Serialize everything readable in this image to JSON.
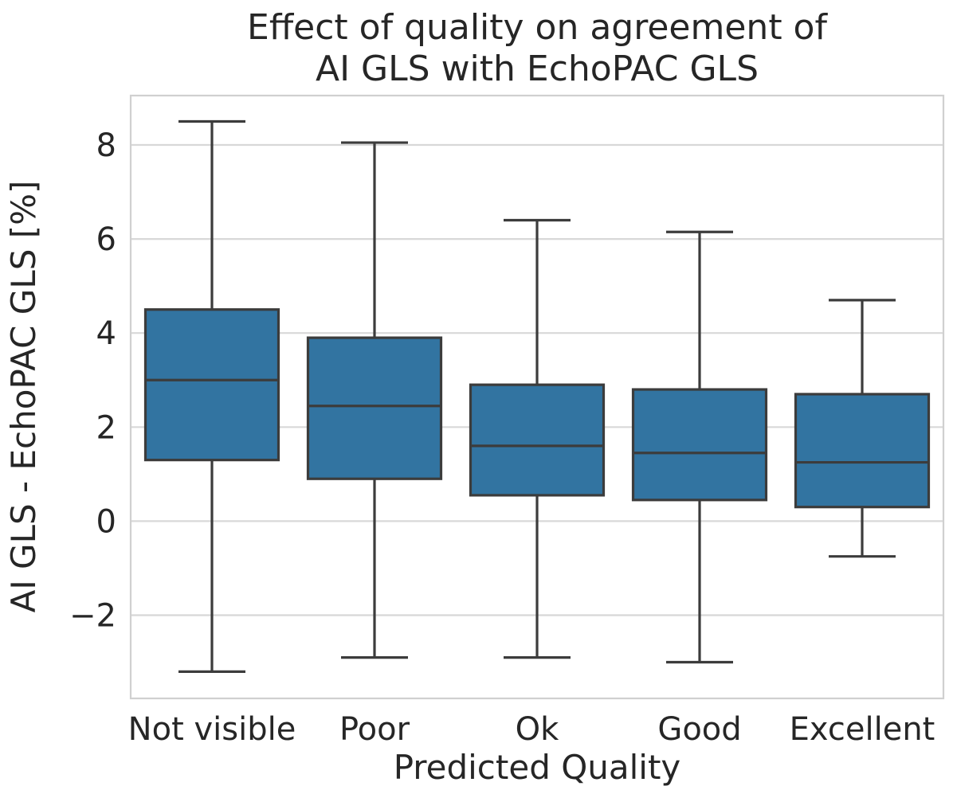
{
  "chart_data": {
    "type": "boxplot",
    "title": "Effect of quality on agreement of\nAI GLS with EchoPAC GLS",
    "title_lines": [
      "Effect of quality on agreement of",
      "AI GLS with EchoPAC GLS"
    ],
    "xlabel": "Predicted Quality",
    "ylabel": "AI GLS - EchoPAC GLS [%]",
    "categories": [
      "Not visible",
      "Poor",
      "Ok",
      "Good",
      "Excellent"
    ],
    "boxes": [
      {
        "category": "Not visible",
        "whisker_low": -3.2,
        "q1": 1.3,
        "median": 3.0,
        "q3": 4.5,
        "whisker_high": 8.5
      },
      {
        "category": "Poor",
        "whisker_low": -2.9,
        "q1": 0.9,
        "median": 2.45,
        "q3": 3.9,
        "whisker_high": 8.05
      },
      {
        "category": "Ok",
        "whisker_low": -2.9,
        "q1": 0.55,
        "median": 1.6,
        "q3": 2.9,
        "whisker_high": 6.4
      },
      {
        "category": "Good",
        "whisker_low": -3.0,
        "q1": 0.45,
        "median": 1.45,
        "q3": 2.8,
        "whisker_high": 6.15
      },
      {
        "category": "Excellent",
        "whisker_low": -0.75,
        "q1": 0.3,
        "median": 1.25,
        "q3": 2.7,
        "whisker_high": 4.7
      }
    ],
    "yticks": [
      8,
      6,
      4,
      2,
      0,
      -2
    ],
    "ytick_labels": [
      "8",
      "6",
      "4",
      "2",
      "0",
      "−2"
    ],
    "ylim": [
      -3.77,
      9.05
    ],
    "grid": true,
    "legend_position": "none",
    "colors": {
      "box_fill": "#3274A1",
      "box_edge": "#3C3C3C",
      "median": "#3C3C3C",
      "whisker": "#3C3C3C",
      "grid": "#D8D8D8",
      "spine": "#D0D0D0",
      "text": "#262626",
      "background": "#FFFFFF"
    }
  }
}
